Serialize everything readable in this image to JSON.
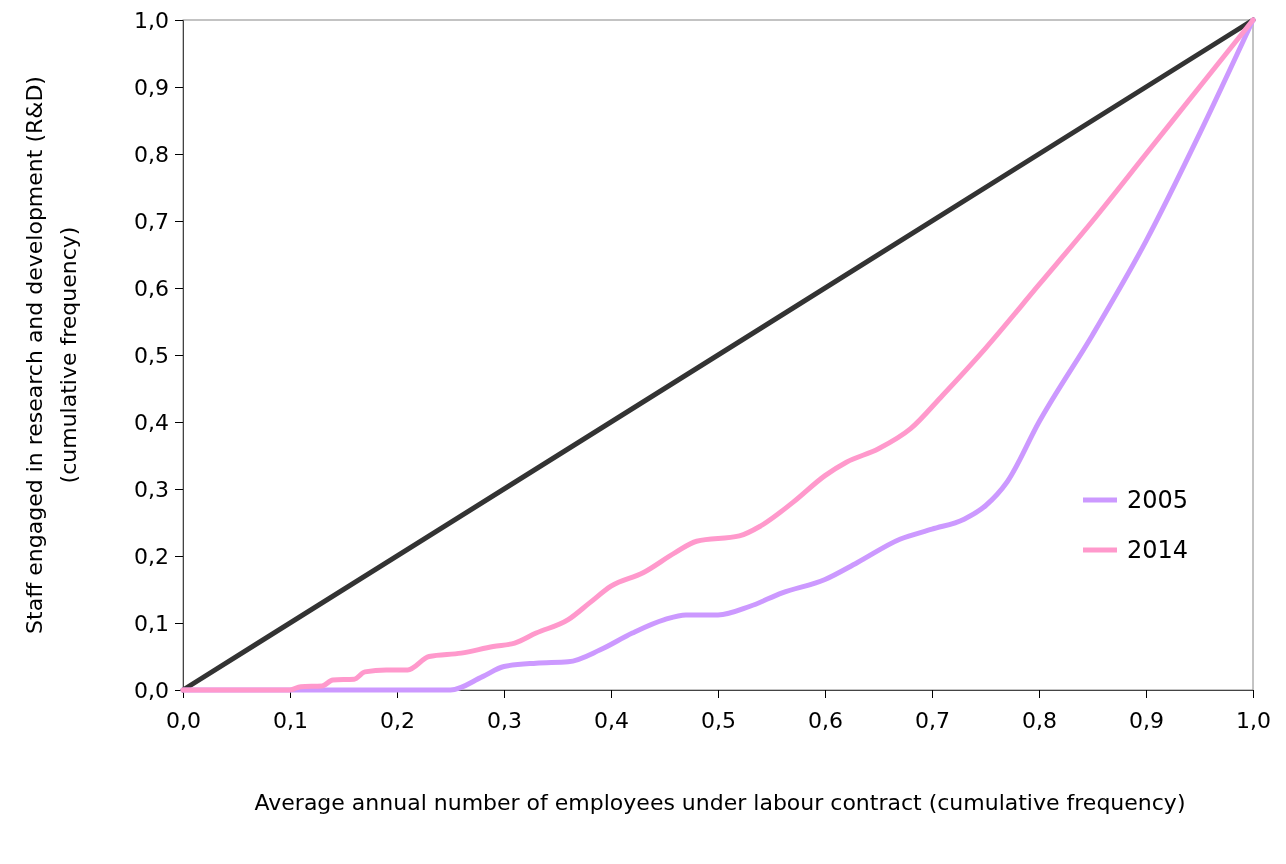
{
  "chart_data": {
    "type": "line",
    "xlabel": "Average annual number of employees under labour contract (cumulative frequency)",
    "ylabel": "Staff engaged in research and development (R&D) (cumulative frequency)",
    "xlim": [
      0,
      1
    ],
    "ylim": [
      0,
      1
    ],
    "xticks": [
      {
        "value": 0,
        "label": "0,0"
      },
      {
        "value": 0.1,
        "label": "0,1"
      },
      {
        "value": 0.2,
        "label": "0,2"
      },
      {
        "value": 0.3,
        "label": "0,3"
      },
      {
        "value": 0.4,
        "label": "0,4"
      },
      {
        "value": 0.5,
        "label": "0,5"
      },
      {
        "value": 0.6,
        "label": "0,6"
      },
      {
        "value": 0.7,
        "label": "0,7"
      },
      {
        "value": 0.8,
        "label": "0,8"
      },
      {
        "value": 0.9,
        "label": "0,9"
      },
      {
        "value": 1,
        "label": "1,0"
      }
    ],
    "yticks": [
      {
        "value": 0,
        "label": "0,0"
      },
      {
        "value": 0.1,
        "label": "0,1"
      },
      {
        "value": 0.2,
        "label": "0,2"
      },
      {
        "value": 0.3,
        "label": "0,3"
      },
      {
        "value": 0.4,
        "label": "0,4"
      },
      {
        "value": 0.5,
        "label": "0,5"
      },
      {
        "value": 0.6,
        "label": "0,6"
      },
      {
        "value": 0.7,
        "label": "0,7"
      },
      {
        "value": 0.8,
        "label": "0,8"
      },
      {
        "value": 0.9,
        "label": "0,9"
      },
      {
        "value": 1,
        "label": "1,0"
      }
    ],
    "legend": "bottom right",
    "grid": false,
    "series": [
      {
        "color": "#333333",
        "x": [
          0,
          1
        ],
        "values": [
          0,
          1
        ]
      },
      {
        "name": "2005",
        "color": "#cc99ff",
        "x": [
          0,
          0.1,
          0.2,
          0.25,
          0.28,
          0.3,
          0.33,
          0.36,
          0.39,
          0.42,
          0.45,
          0.47,
          0.5,
          0.53,
          0.56,
          0.6,
          0.63,
          0.67,
          0.7,
          0.73,
          0.75,
          0.77,
          0.8,
          0.85,
          0.9,
          0.95,
          1
        ],
        "values": [
          0,
          0,
          0,
          0,
          0.02,
          0.035,
          0.04,
          0.042,
          0.06,
          0.085,
          0.105,
          0.112,
          0.112,
          0.125,
          0.145,
          0.165,
          0.19,
          0.225,
          0.24,
          0.255,
          0.275,
          0.31,
          0.4,
          0.53,
          0.67,
          0.83,
          1
        ]
      },
      {
        "name": "2014",
        "color": "#ff99cc",
        "x": [
          0,
          0.1,
          0.11,
          0.13,
          0.14,
          0.16,
          0.17,
          0.19,
          0.21,
          0.23,
          0.26,
          0.29,
          0.31,
          0.33,
          0.36,
          0.38,
          0.4,
          0.43,
          0.46,
          0.48,
          0.52,
          0.54,
          0.57,
          0.6,
          0.62,
          0.65,
          0.68,
          0.71,
          0.75,
          0.8,
          0.85,
          0.9,
          0.95,
          1
        ],
        "values": [
          0,
          0,
          0.005,
          0.006,
          0.015,
          0.016,
          0.027,
          0.03,
          0.03,
          0.05,
          0.055,
          0.065,
          0.07,
          0.085,
          0.105,
          0.13,
          0.155,
          0.175,
          0.205,
          0.222,
          0.23,
          0.245,
          0.28,
          0.32,
          0.34,
          0.36,
          0.39,
          0.44,
          0.51,
          0.605,
          0.7,
          0.8,
          0.9,
          1
        ]
      }
    ]
  }
}
